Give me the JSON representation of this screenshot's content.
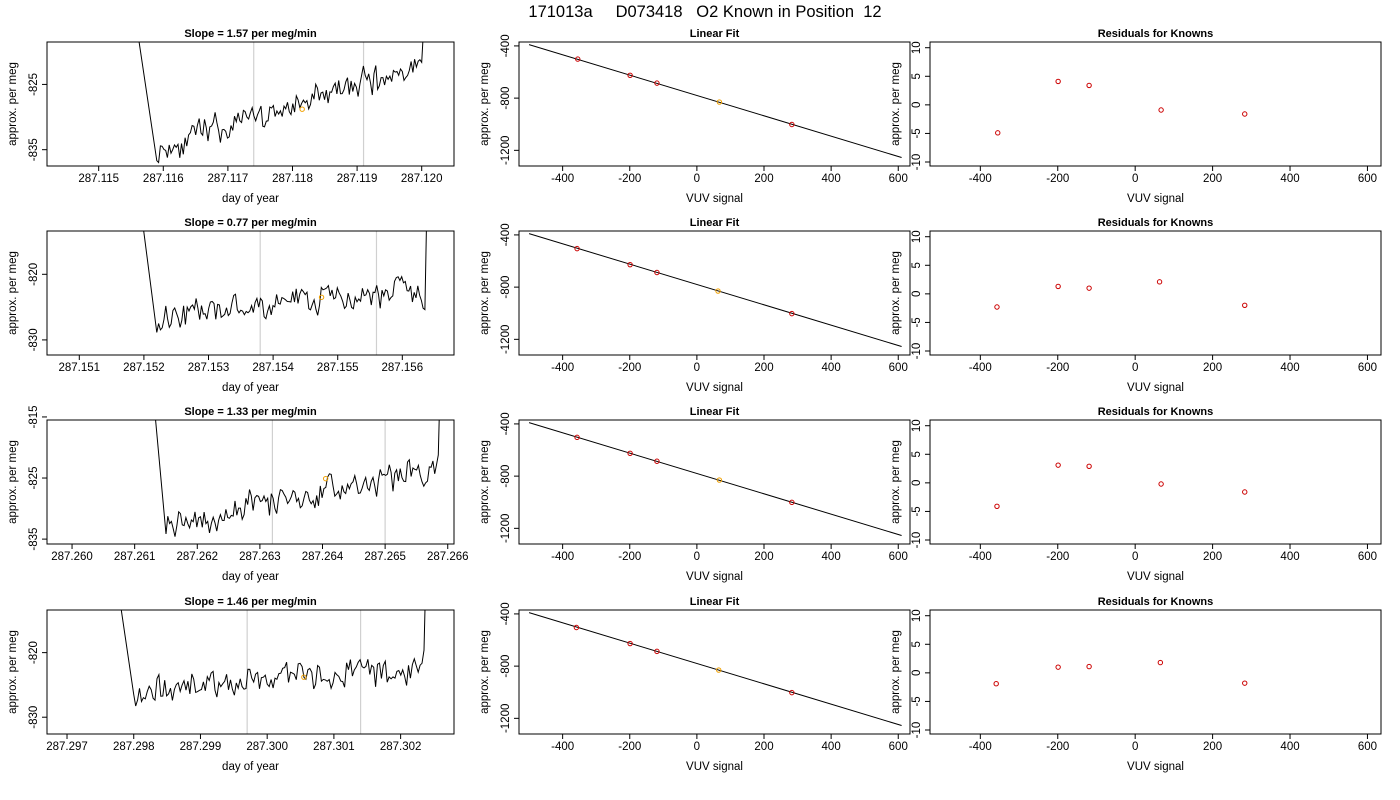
{
  "suptitle": "171013a     D073418   O2 Known in Position  12",
  "colors": {
    "line": "#000000",
    "grid": "#d0d0d0",
    "standard_point": "#cc0000",
    "highlight_point": "#f0a000"
  },
  "chart_data": [
    {
      "type": "line",
      "row": 1,
      "title": "Slope =  1.57  per meg/min",
      "xlabel": "day of year",
      "ylabel": "approx. per meg",
      "xlim": [
        287.1142,
        287.1205
      ],
      "ylim": [
        -837.5,
        -818.5
      ],
      "xticks": [
        "287.115",
        "287.116",
        "287.117",
        "287.118",
        "287.119",
        "287.120"
      ],
      "yticks": [
        "-825",
        "-835"
      ],
      "vlines": [
        287.1174,
        287.1191
      ],
      "trace": {
        "start": 287.1154,
        "end": 287.1201,
        "high_end": 287.1159,
        "rise": 287.12,
        "a": -835,
        "b": -822,
        "amp": 1.6,
        "seed": 11
      },
      "highlight_point": {
        "x": 287.11815,
        "y": -828.8
      }
    },
    {
      "type": "scatter_fit",
      "row": 1,
      "title": "Linear Fit",
      "xlabel": "VUV signal",
      "ylabel": "approx. per meg",
      "xlim": [
        -530,
        635
      ],
      "ylim": [
        -1320,
        -370
      ],
      "xticks": [
        "-400",
        "-200",
        "0",
        "200",
        "400",
        "600"
      ],
      "yticks": [
        "-400",
        "-800",
        "-1200"
      ],
      "fit_line": {
        "x": [
          -500,
          610
        ],
        "y": [
          -390,
          -1255
        ]
      },
      "points": [
        {
          "x": -355,
          "y": -501
        },
        {
          "x": -199,
          "y": -625
        },
        {
          "x": -119,
          "y": -685
        },
        {
          "x": 283,
          "y": -1002
        }
      ],
      "highlight_points": [
        {
          "x": 67,
          "y": -830
        }
      ]
    },
    {
      "type": "scatter",
      "row": 1,
      "title": "Residuals for Knowns",
      "xlabel": "VUV signal",
      "ylabel": "approx. per meg",
      "xlim": [
        -530,
        635
      ],
      "ylim": [
        -10.7,
        11
      ],
      "xticks": [
        "-400",
        "-200",
        "0",
        "200",
        "400",
        "600"
      ],
      "yticks": [
        "10",
        "5",
        "0",
        "-5",
        "-10"
      ],
      "points": [
        {
          "x": -355,
          "y": -4.9
        },
        {
          "x": -199,
          "y": 4.1
        },
        {
          "x": -119,
          "y": 3.4
        },
        {
          "x": 67,
          "y": -0.9
        },
        {
          "x": 283,
          "y": -1.6
        }
      ]
    },
    {
      "type": "line",
      "row": 2,
      "title": "Slope =  0.77  per meg/min",
      "xlabel": "day of year",
      "ylabel": "approx. per meg",
      "xlim": [
        287.1505,
        287.1568
      ],
      "ylim": [
        -832.3,
        -813.4
      ],
      "xticks": [
        "287.151",
        "287.152",
        "287.153",
        "287.154",
        "287.155",
        "287.156"
      ],
      "yticks": [
        "-820",
        "-830"
      ],
      "vlines": [
        287.1538,
        287.1556
      ],
      "trace": {
        "start": 287.1518,
        "end": 287.1564,
        "high_end": 287.1522,
        "rise": 287.15635,
        "a": -826.5,
        "b": -822.5,
        "amp": 1.6,
        "seed": 23
      },
      "highlight_point": {
        "x": 287.15475,
        "y": -823.5
      }
    },
    {
      "type": "scatter_fit",
      "row": 2,
      "title": "Linear Fit",
      "xlabel": "VUV signal",
      "ylabel": "approx. per meg",
      "xlim": [
        -530,
        635
      ],
      "ylim": [
        -1320,
        -370
      ],
      "xticks": [
        "-400",
        "-200",
        "0",
        "200",
        "400",
        "600"
      ],
      "yticks": [
        "-400",
        "-800",
        "-1200"
      ],
      "fit_line": {
        "x": [
          -500,
          610
        ],
        "y": [
          -390,
          -1255
        ]
      },
      "points": [
        {
          "x": -357,
          "y": -505
        },
        {
          "x": -199,
          "y": -628
        },
        {
          "x": -119,
          "y": -688
        },
        {
          "x": 283,
          "y": -1003
        }
      ],
      "highlight_points": [
        {
          "x": 63,
          "y": -830
        }
      ]
    },
    {
      "type": "scatter",
      "row": 2,
      "title": "Residuals for Knowns",
      "xlabel": "VUV signal",
      "ylabel": "approx. per meg",
      "xlim": [
        -530,
        635
      ],
      "ylim": [
        -10.7,
        11
      ],
      "xticks": [
        "-400",
        "-200",
        "0",
        "200",
        "400",
        "600"
      ],
      "yticks": [
        "10",
        "5",
        "0",
        "-5",
        "-10"
      ],
      "points": [
        {
          "x": -357,
          "y": -2.3
        },
        {
          "x": -199,
          "y": 1.3
        },
        {
          "x": -119,
          "y": 1.0
        },
        {
          "x": 63,
          "y": 2.1
        },
        {
          "x": 283,
          "y": -2.0
        }
      ]
    },
    {
      "type": "line",
      "row": 3,
      "title": "Slope =  1.33  per meg/min",
      "xlabel": "day of year",
      "ylabel": "approx. per meg",
      "xlim": [
        287.2596,
        287.2661
      ],
      "ylim": [
        -835.8,
        -815.5
      ],
      "xticks": [
        "287.260",
        "287.261",
        "287.262",
        "287.263",
        "287.264",
        "287.265",
        "287.266"
      ],
      "yticks": [
        "-815",
        "-825",
        "-835"
      ],
      "vlines": [
        287.2632,
        287.265
      ],
      "trace": {
        "start": 287.2612,
        "end": 287.2659,
        "high_end": 287.2615,
        "rise": 287.26585,
        "a": -833,
        "b": -823,
        "amp": 1.8,
        "seed": 37
      },
      "highlight_point": {
        "x": 287.26405,
        "y": -825.1
      }
    },
    {
      "type": "scatter_fit",
      "row": 3,
      "title": "Linear Fit",
      "xlabel": "VUV signal",
      "ylabel": "approx. per meg",
      "xlim": [
        -530,
        635
      ],
      "ylim": [
        -1320,
        -370
      ],
      "xticks": [
        "-400",
        "-200",
        "0",
        "200",
        "400",
        "600"
      ],
      "yticks": [
        "-400",
        "-800",
        "-1200"
      ],
      "fit_line": {
        "x": [
          -500,
          610
        ],
        "y": [
          -390,
          -1255
        ]
      },
      "points": [
        {
          "x": -357,
          "y": -503
        },
        {
          "x": -199,
          "y": -625
        },
        {
          "x": -119,
          "y": -686
        },
        {
          "x": 283,
          "y": -1001
        }
      ],
      "highlight_points": [
        {
          "x": 67,
          "y": -830
        }
      ]
    },
    {
      "type": "scatter",
      "row": 3,
      "title": "Residuals for Knowns",
      "xlabel": "VUV signal",
      "ylabel": "approx. per meg",
      "xlim": [
        -530,
        635
      ],
      "ylim": [
        -10.7,
        11
      ],
      "xticks": [
        "-400",
        "-200",
        "0",
        "200",
        "400",
        "600"
      ],
      "yticks": [
        "10",
        "5",
        "0",
        "-5",
        "-10"
      ],
      "points": [
        {
          "x": -357,
          "y": -4.1
        },
        {
          "x": -199,
          "y": 3.1
        },
        {
          "x": -119,
          "y": 2.9
        },
        {
          "x": 67,
          "y": -0.2
        },
        {
          "x": 283,
          "y": -1.6
        }
      ]
    },
    {
      "type": "line",
      "row": 4,
      "title": "Slope =  1.46  per meg/min",
      "xlabel": "day of year",
      "ylabel": "approx. per meg",
      "xlim": [
        287.2967,
        287.3028
      ],
      "ylim": [
        -832.6,
        -813.4
      ],
      "xticks": [
        "287.297",
        "287.298",
        "287.299",
        "287.300",
        "287.301",
        "287.302"
      ],
      "yticks": [
        "-820",
        "-830"
      ],
      "vlines": [
        287.2997,
        287.3014
      ],
      "trace": {
        "start": 287.2976,
        "end": 287.3024,
        "high_end": 287.298,
        "rise": 287.30235,
        "a": -825.5,
        "b": -822.5,
        "amp": 1.8,
        "seed": 53
      },
      "highlight_point": {
        "x": 287.30055,
        "y": -823.8
      }
    },
    {
      "type": "scatter_fit",
      "row": 4,
      "title": "Linear Fit",
      "xlabel": "VUV signal",
      "ylabel": "approx. per meg",
      "xlim": [
        -530,
        635
      ],
      "ylim": [
        -1320,
        -370
      ],
      "xticks": [
        "-400",
        "-200",
        "0",
        "200",
        "400",
        "600"
      ],
      "yticks": [
        "-400",
        "-800",
        "-1200"
      ],
      "fit_line": {
        "x": [
          -500,
          610
        ],
        "y": [
          -390,
          -1255
        ]
      },
      "points": [
        {
          "x": -359,
          "y": -504
        },
        {
          "x": -199,
          "y": -627
        },
        {
          "x": -119,
          "y": -687
        },
        {
          "x": 283,
          "y": -1003
        }
      ],
      "highlight_points": [
        {
          "x": 65,
          "y": -830
        }
      ]
    },
    {
      "type": "scatter",
      "row": 4,
      "title": "Residuals for Knowns",
      "xlabel": "VUV signal",
      "ylabel": "approx. per meg",
      "xlim": [
        -530,
        635
      ],
      "ylim": [
        -10.7,
        11
      ],
      "xticks": [
        "-400",
        "-200",
        "0",
        "200",
        "400",
        "600"
      ],
      "yticks": [
        "10",
        "5",
        "0",
        "-5",
        "-10"
      ],
      "points": [
        {
          "x": -359,
          "y": -1.9
        },
        {
          "x": -199,
          "y": 1.0
        },
        {
          "x": -119,
          "y": 1.1
        },
        {
          "x": 65,
          "y": 1.8
        },
        {
          "x": 283,
          "y": -1.8
        }
      ]
    }
  ]
}
